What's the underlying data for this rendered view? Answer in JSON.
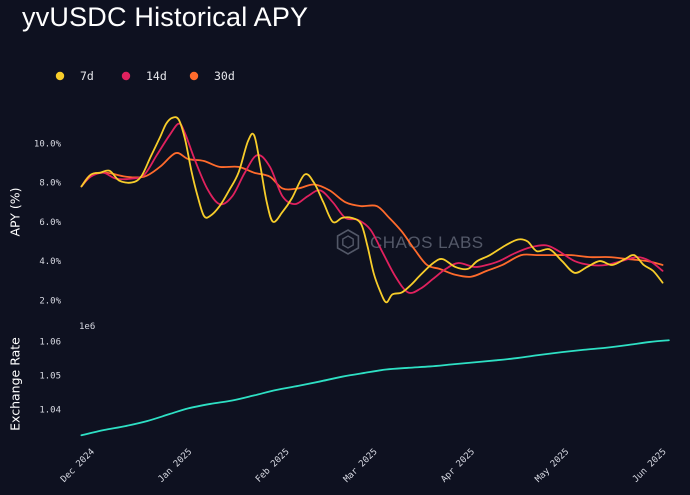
{
  "title": "yvUSDC Historical APY",
  "watermark": "CHAOS LABS",
  "chart_data": [
    {
      "type": "line",
      "ylabel": "APY (%)",
      "yticks": [
        "2.0%",
        "4.0%",
        "6.0%",
        "8.0%",
        "10.0%"
      ],
      "ytick_values": [
        2,
        4,
        6,
        8,
        10
      ],
      "ylim": [
        1.2,
        11.9
      ],
      "xlim": [
        "2024-11-25",
        "2025-06-04"
      ],
      "legend_position": "top-left",
      "grid": false,
      "series": [
        {
          "name": "7d",
          "color": "#f7cd2a",
          "points": [
            [
              "2024-11-28",
              7.8
            ],
            [
              "2024-12-01",
              8.4
            ],
            [
              "2024-12-04",
              8.5
            ],
            [
              "2024-12-07",
              8.6
            ],
            [
              "2024-12-10",
              8.1
            ],
            [
              "2024-12-14",
              8.0
            ],
            [
              "2024-12-17",
              8.3
            ],
            [
              "2024-12-20",
              9.3
            ],
            [
              "2024-12-23",
              10.3
            ],
            [
              "2024-12-25",
              11.0
            ],
            [
              "2024-12-27",
              11.3
            ],
            [
              "2024-12-29",
              11.2
            ],
            [
              "2024-12-31",
              10.2
            ],
            [
              "2025-01-02",
              8.6
            ],
            [
              "2025-01-04",
              7.3
            ],
            [
              "2025-01-06",
              6.3
            ],
            [
              "2025-01-08",
              6.3
            ],
            [
              "2025-01-11",
              6.8
            ],
            [
              "2025-01-14",
              7.6
            ],
            [
              "2025-01-17",
              8.5
            ],
            [
              "2025-01-20",
              10.1
            ],
            [
              "2025-01-22",
              10.4
            ],
            [
              "2025-01-24",
              8.8
            ],
            [
              "2025-01-26",
              7.0
            ],
            [
              "2025-01-28",
              6.0
            ],
            [
              "2025-01-31",
              6.5
            ],
            [
              "2025-02-03",
              7.2
            ],
            [
              "2025-02-07",
              8.4
            ],
            [
              "2025-02-10",
              8.0
            ],
            [
              "2025-02-13",
              7.0
            ],
            [
              "2025-02-16",
              6.0
            ],
            [
              "2025-02-19",
              6.2
            ],
            [
              "2025-02-22",
              6.2
            ],
            [
              "2025-02-25",
              5.9
            ],
            [
              "2025-02-27",
              4.8
            ],
            [
              "2025-03-01",
              3.4
            ],
            [
              "2025-03-03",
              2.5
            ],
            [
              "2025-03-05",
              1.9
            ],
            [
              "2025-03-07",
              2.3
            ],
            [
              "2025-03-10",
              2.4
            ],
            [
              "2025-03-13",
              2.8
            ],
            [
              "2025-03-16",
              3.3
            ],
            [
              "2025-03-20",
              3.9
            ],
            [
              "2025-03-23",
              4.1
            ],
            [
              "2025-03-27",
              3.7
            ],
            [
              "2025-03-31",
              3.6
            ],
            [
              "2025-04-03",
              4.0
            ],
            [
              "2025-04-07",
              4.3
            ],
            [
              "2025-04-12",
              4.8
            ],
            [
              "2025-04-16",
              5.1
            ],
            [
              "2025-04-19",
              5.0
            ],
            [
              "2025-04-22",
              4.5
            ],
            [
              "2025-04-26",
              4.6
            ],
            [
              "2025-04-30",
              4.0
            ],
            [
              "2025-05-04",
              3.4
            ],
            [
              "2025-05-08",
              3.7
            ],
            [
              "2025-05-12",
              4.0
            ],
            [
              "2025-05-16",
              3.8
            ],
            [
              "2025-05-20",
              4.1
            ],
            [
              "2025-05-23",
              4.3
            ],
            [
              "2025-05-26",
              3.8
            ],
            [
              "2025-05-29",
              3.5
            ],
            [
              "2025-06-01",
              2.9
            ]
          ]
        },
        {
          "name": "14d",
          "color": "#e0215e",
          "points": [
            [
              "2024-11-28",
              7.8
            ],
            [
              "2024-12-01",
              8.3
            ],
            [
              "2024-12-05",
              8.5
            ],
            [
              "2024-12-09",
              8.2
            ],
            [
              "2024-12-14",
              8.2
            ],
            [
              "2024-12-18",
              8.4
            ],
            [
              "2024-12-22",
              9.4
            ],
            [
              "2024-12-26",
              10.4
            ],
            [
              "2024-12-29",
              11.0
            ],
            [
              "2024-12-31",
              10.5
            ],
            [
              "2025-01-03",
              9.2
            ],
            [
              "2025-01-07",
              7.7
            ],
            [
              "2025-01-11",
              6.9
            ],
            [
              "2025-01-15",
              7.3
            ],
            [
              "2025-01-19",
              8.5
            ],
            [
              "2025-01-23",
              9.4
            ],
            [
              "2025-01-27",
              8.8
            ],
            [
              "2025-01-31",
              7.3
            ],
            [
              "2025-02-04",
              6.9
            ],
            [
              "2025-02-08",
              7.3
            ],
            [
              "2025-02-12",
              7.6
            ],
            [
              "2025-02-16",
              7.0
            ],
            [
              "2025-02-20",
              6.2
            ],
            [
              "2025-02-24",
              6.1
            ],
            [
              "2025-02-28",
              5.6
            ],
            [
              "2025-03-04",
              4.4
            ],
            [
              "2025-03-08",
              3.2
            ],
            [
              "2025-03-12",
              2.4
            ],
            [
              "2025-03-16",
              2.6
            ],
            [
              "2025-03-20",
              3.1
            ],
            [
              "2025-03-24",
              3.6
            ],
            [
              "2025-03-28",
              3.9
            ],
            [
              "2025-04-02",
              3.7
            ],
            [
              "2025-04-06",
              3.8
            ],
            [
              "2025-04-10",
              4.0
            ],
            [
              "2025-04-15",
              4.4
            ],
            [
              "2025-04-20",
              4.7
            ],
            [
              "2025-04-25",
              4.8
            ],
            [
              "2025-04-29",
              4.5
            ],
            [
              "2025-05-04",
              4.0
            ],
            [
              "2025-05-09",
              3.8
            ],
            [
              "2025-05-14",
              3.8
            ],
            [
              "2025-05-19",
              4.0
            ],
            [
              "2025-05-24",
              4.2
            ],
            [
              "2025-05-28",
              4.0
            ],
            [
              "2025-06-01",
              3.5
            ]
          ]
        },
        {
          "name": "30d",
          "color": "#ff6b2c",
          "points": [
            [
              "2024-11-28",
              7.8
            ],
            [
              "2024-12-01",
              8.4
            ],
            [
              "2024-12-06",
              8.5
            ],
            [
              "2024-12-12",
              8.3
            ],
            [
              "2024-12-18",
              8.3
            ],
            [
              "2024-12-23",
              8.8
            ],
            [
              "2024-12-28",
              9.5
            ],
            [
              "2025-01-01",
              9.2
            ],
            [
              "2025-01-06",
              9.1
            ],
            [
              "2025-01-11",
              8.8
            ],
            [
              "2025-01-17",
              8.8
            ],
            [
              "2025-01-22",
              8.5
            ],
            [
              "2025-01-27",
              8.3
            ],
            [
              "2025-01-31",
              7.7
            ],
            [
              "2025-02-05",
              7.7
            ],
            [
              "2025-02-10",
              7.9
            ],
            [
              "2025-02-15",
              7.6
            ],
            [
              "2025-02-20",
              7.0
            ],
            [
              "2025-02-25",
              6.8
            ],
            [
              "2025-03-02",
              6.8
            ],
            [
              "2025-03-06",
              6.2
            ],
            [
              "2025-03-10",
              5.5
            ],
            [
              "2025-03-14",
              4.6
            ],
            [
              "2025-03-18",
              3.8
            ],
            [
              "2025-03-22",
              3.6
            ],
            [
              "2025-03-27",
              3.3
            ],
            [
              "2025-04-01",
              3.2
            ],
            [
              "2025-04-06",
              3.5
            ],
            [
              "2025-04-11",
              3.8
            ],
            [
              "2025-04-17",
              4.3
            ],
            [
              "2025-04-22",
              4.3
            ],
            [
              "2025-04-28",
              4.3
            ],
            [
              "2025-05-03",
              4.3
            ],
            [
              "2025-05-09",
              4.2
            ],
            [
              "2025-05-15",
              4.2
            ],
            [
              "2025-05-21",
              4.1
            ],
            [
              "2025-05-27",
              4.0
            ],
            [
              "2025-06-01",
              3.8
            ]
          ]
        }
      ]
    },
    {
      "type": "line",
      "ylabel": "Exchange Rate",
      "scale_label": "1e6",
      "yticks": [
        "1.04",
        "1.05",
        "1.06"
      ],
      "ytick_values": [
        1.04,
        1.05,
        1.06
      ],
      "ylim": [
        1.0317,
        1.0634
      ],
      "xlim": [
        "2024-11-25",
        "2025-06-04"
      ],
      "grid": false,
      "xticks": [
        "Dec 2024",
        "Jan 2025",
        "Feb 2025",
        "Mar 2025",
        "Apr 2025",
        "May 2025",
        "Jun 2025"
      ],
      "xtick_dates": [
        "2024-12-01",
        "2025-01-01",
        "2025-02-01",
        "2025-03-01",
        "2025-04-01",
        "2025-05-01",
        "2025-06-01"
      ],
      "series": [
        {
          "color": "#2ee0c4",
          "points": [
            [
              "2024-11-28",
              1.0325
            ],
            [
              "2024-12-05",
              1.034
            ],
            [
              "2024-12-12",
              1.0352
            ],
            [
              "2024-12-19",
              1.0367
            ],
            [
              "2024-12-26",
              1.0387
            ],
            [
              "2025-01-01",
              1.0404
            ],
            [
              "2025-01-08",
              1.0417
            ],
            [
              "2025-01-15",
              1.0427
            ],
            [
              "2025-01-22",
              1.0442
            ],
            [
              "2025-01-29",
              1.0458
            ],
            [
              "2025-02-05",
              1.047
            ],
            [
              "2025-02-12",
              1.0483
            ],
            [
              "2025-02-19",
              1.0497
            ],
            [
              "2025-02-26",
              1.0508
            ],
            [
              "2025-03-05",
              1.0518
            ],
            [
              "2025-03-12",
              1.0523
            ],
            [
              "2025-03-19",
              1.0527
            ],
            [
              "2025-03-26",
              1.0533
            ],
            [
              "2025-04-02",
              1.0539
            ],
            [
              "2025-04-09",
              1.0545
            ],
            [
              "2025-04-16",
              1.0552
            ],
            [
              "2025-04-23",
              1.0561
            ],
            [
              "2025-04-30",
              1.0569
            ],
            [
              "2025-05-07",
              1.0576
            ],
            [
              "2025-05-14",
              1.0582
            ],
            [
              "2025-05-21",
              1.059
            ],
            [
              "2025-05-28",
              1.0599
            ],
            [
              "2025-06-03",
              1.0604
            ]
          ]
        }
      ]
    }
  ]
}
